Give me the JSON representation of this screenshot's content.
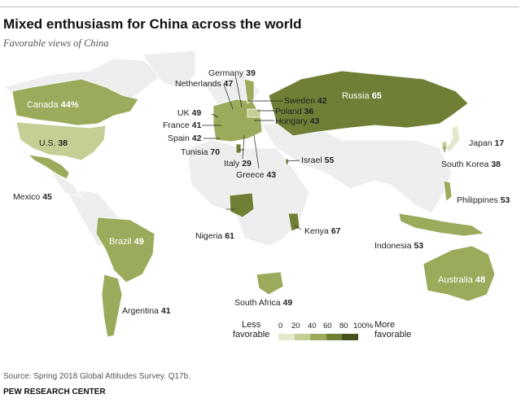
{
  "title": "Mixed enthusiasm for China across the world",
  "subtitle": "Favorable views of China",
  "source": "Source: Spring 2018 Global Attitudes Survey. Q17b.",
  "organization": "PEW RESEARCH CENTER",
  "legend": {
    "less": "Less favorable",
    "less_line1": "Less",
    "less_line2": "favorable",
    "more_line1": "More",
    "more_line2": "favorable",
    "ticks": [
      "0",
      "20",
      "40",
      "60",
      "80",
      "100%"
    ],
    "colors": [
      "#e4e9cc",
      "#c3cf94",
      "#9aab5c",
      "#6f8036",
      "#46521d"
    ]
  },
  "colors": {
    "no_data": "#eeeeee",
    "border": "#ffffff"
  },
  "countries": [
    {
      "name": "Canada",
      "value": "44%"
    },
    {
      "name": "U.S.",
      "value": "38"
    },
    {
      "name": "Mexico",
      "value": "45"
    },
    {
      "name": "Brazil",
      "value": "49"
    },
    {
      "name": "Argentina",
      "value": "41"
    },
    {
      "name": "Germany",
      "value": "39"
    },
    {
      "name": "Netherlands",
      "value": "47"
    },
    {
      "name": "UK",
      "value": "49"
    },
    {
      "name": "France",
      "value": "41"
    },
    {
      "name": "Spain",
      "value": "42"
    },
    {
      "name": "Tunisia",
      "value": "70"
    },
    {
      "name": "Italy",
      "value": "29"
    },
    {
      "name": "Greece",
      "value": "43"
    },
    {
      "name": "Sweden",
      "value": "42"
    },
    {
      "name": "Poland",
      "value": "36"
    },
    {
      "name": "Hungary",
      "value": "43"
    },
    {
      "name": "Russia",
      "value": "65"
    },
    {
      "name": "Israel",
      "value": "55"
    },
    {
      "name": "Japan",
      "value": "17"
    },
    {
      "name": "South Korea",
      "value": "38"
    },
    {
      "name": "Philippines",
      "value": "53"
    },
    {
      "name": "Indonesia",
      "value": "53"
    },
    {
      "name": "Australia",
      "value": "48"
    },
    {
      "name": "Kenya",
      "value": "67"
    },
    {
      "name": "Nigeria",
      "value": "61"
    },
    {
      "name": "South Africa",
      "value": "49"
    }
  ]
}
